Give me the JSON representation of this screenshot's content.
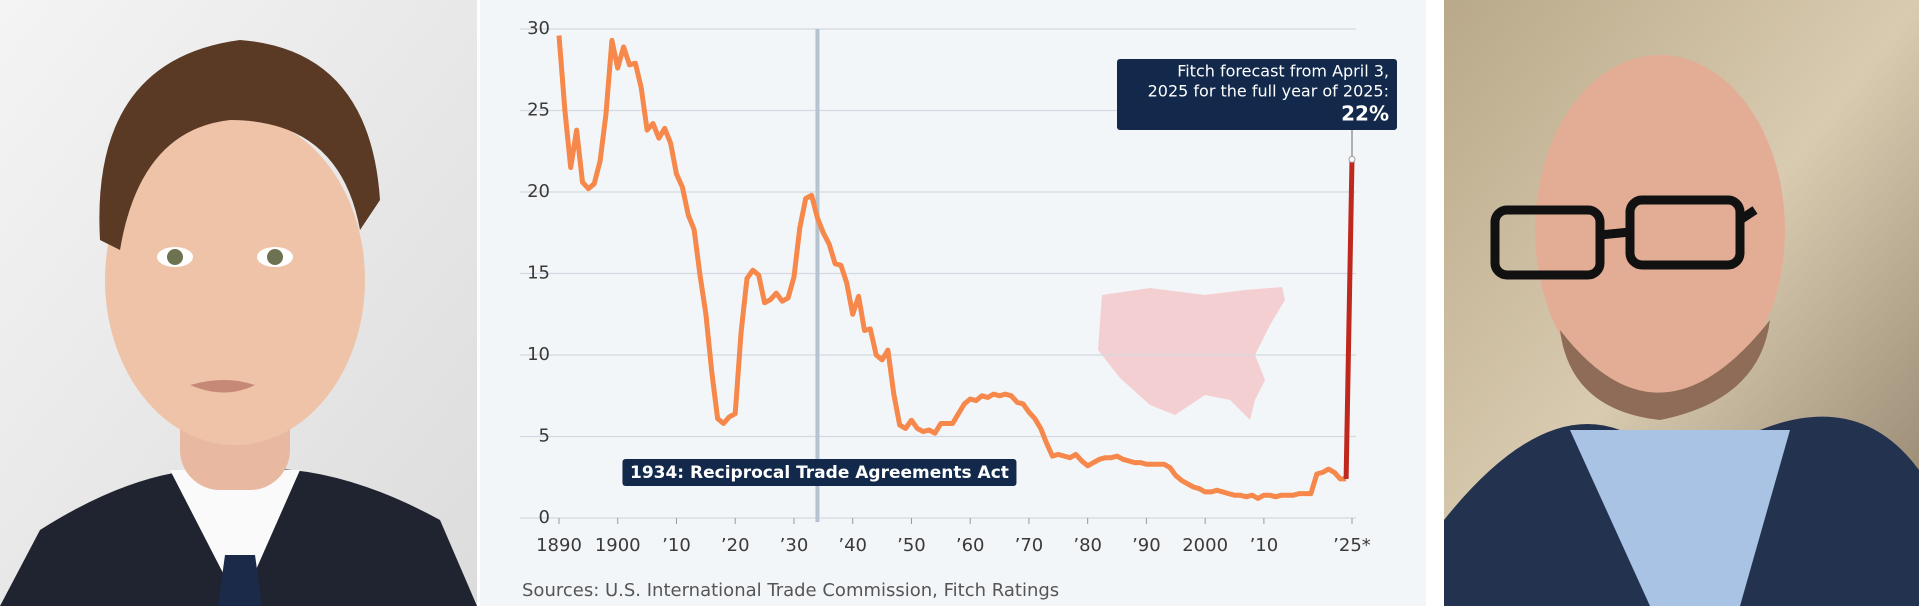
{
  "chart_data": {
    "type": "line",
    "xlim": [
      1890,
      2025
    ],
    "ylim": [
      0,
      30
    ],
    "yticks": [
      0,
      5,
      10,
      15,
      20,
      25,
      30
    ],
    "xticks": [
      1890,
      1900,
      {
        "value": 1910,
        "label": "’10"
      },
      {
        "value": 1920,
        "label": "’20"
      },
      {
        "value": 1930,
        "label": "’30"
      },
      {
        "value": 1940,
        "label": "’40"
      },
      {
        "value": 1950,
        "label": "’50"
      },
      {
        "value": 1960,
        "label": "’60"
      },
      {
        "value": 1970,
        "label": "’70"
      },
      {
        "value": 1980,
        "label": "’80"
      },
      {
        "value": 1990,
        "label": "’90"
      },
      2000,
      {
        "value": 2010,
        "label": "’10"
      },
      {
        "value": 2025,
        "label": "’25*"
      }
    ],
    "grid": true,
    "series": [
      {
        "color": "#f5884a",
        "x": [
          1890,
          1891,
          1892,
          1893,
          1894,
          1895,
          1896,
          1897,
          1898,
          1899,
          1900,
          1901,
          1902,
          1903,
          1904,
          1905,
          1906,
          1907,
          1908,
          1909,
          1910,
          1911,
          1912,
          1913,
          1914,
          1915,
          1916,
          1917,
          1918,
          1919,
          1920,
          1921,
          1922,
          1923,
          1924,
          1925,
          1926,
          1927,
          1928,
          1929,
          1930,
          1931,
          1932,
          1933,
          1934,
          1935,
          1936,
          1937,
          1938,
          1939,
          1940,
          1941,
          1942,
          1943,
          1944,
          1945,
          1946,
          1947,
          1948,
          1949,
          1950,
          1951,
          1952,
          1953,
          1954,
          1955,
          1956,
          1957,
          1958,
          1959,
          1960,
          1961,
          1962,
          1963,
          1964,
          1965,
          1966,
          1967,
          1968,
          1969,
          1970,
          1971,
          1972,
          1973,
          1974,
          1975,
          1976,
          1977,
          1978,
          1979,
          1980,
          1981,
          1982,
          1983,
          1984,
          1985,
          1986,
          1987,
          1988,
          1989,
          1990,
          1991,
          1992,
          1993,
          1994,
          1995,
          1996,
          1997,
          1998,
          1999,
          2000,
          2001,
          2002,
          2003,
          2004,
          2005,
          2006,
          2007,
          2008,
          2009,
          2010,
          2011,
          2012,
          2013,
          2014,
          2015,
          2016,
          2017,
          2018,
          2019,
          2020,
          2021,
          2022,
          2023,
          2024
        ],
        "values": [
          29.6,
          25,
          21.5,
          23.8,
          20.6,
          20.2,
          20.5,
          21.9,
          24.8,
          29.3,
          27.6,
          28.9,
          27.8,
          27.9,
          26.4,
          23.8,
          24.2,
          23.3,
          23.9,
          23.0,
          21.1,
          20.3,
          18.6,
          17.7,
          14.9,
          12.5,
          9.0,
          6.1,
          5.8,
          6.2,
          6.4,
          11.4,
          14.7,
          15.2,
          14.9,
          13.2,
          13.4,
          13.8,
          13.3,
          13.5,
          14.8,
          17.8,
          19.6,
          19.8,
          18.4,
          17.5,
          16.8,
          15.6,
          15.5,
          14.4,
          12.5,
          13.6,
          11.5,
          11.6,
          10.0,
          9.7,
          10.3,
          7.6,
          5.7,
          5.5,
          6.0,
          5.5,
          5.3,
          5.4,
          5.2,
          5.8,
          5.8,
          5.8,
          6.4,
          7.0,
          7.3,
          7.2,
          7.5,
          7.4,
          7.6,
          7.5,
          7.6,
          7.5,
          7.1,
          7.0,
          6.5,
          6.1,
          5.5,
          4.6,
          3.8,
          3.9,
          3.8,
          3.7,
          3.9,
          3.5,
          3.2,
          3.4,
          3.6,
          3.7,
          3.7,
          3.8,
          3.6,
          3.5,
          3.4,
          3.4,
          3.3,
          3.3,
          3.3,
          3.3,
          3.1,
          2.6,
          2.3,
          2.1,
          1.9,
          1.8,
          1.6,
          1.6,
          1.7,
          1.6,
          1.5,
          1.4,
          1.4,
          1.3,
          1.4,
          1.2,
          1.4,
          1.4,
          1.3,
          1.4,
          1.4,
          1.4,
          1.5,
          1.5,
          1.5,
          2.7,
          2.8,
          3.0,
          2.8,
          2.4,
          2.4
        ]
      },
      {
        "color": "#c0281e",
        "x": [
          2024,
          2025
        ],
        "values": [
          2.4,
          22
        ],
        "value_labels": [
          null,
          "22%"
        ]
      }
    ],
    "annotations": [
      {
        "x": 1934,
        "text": "1934: Reciprocal Trade Agreements Act"
      },
      {
        "x": 2025,
        "text": [
          "Fitch forecast from April 3,",
          "2025 for the full year of 2025:"
        ]
      }
    ],
    "source": "Sources: U.S. International Trade Commission, Fitch Ratings"
  }
}
